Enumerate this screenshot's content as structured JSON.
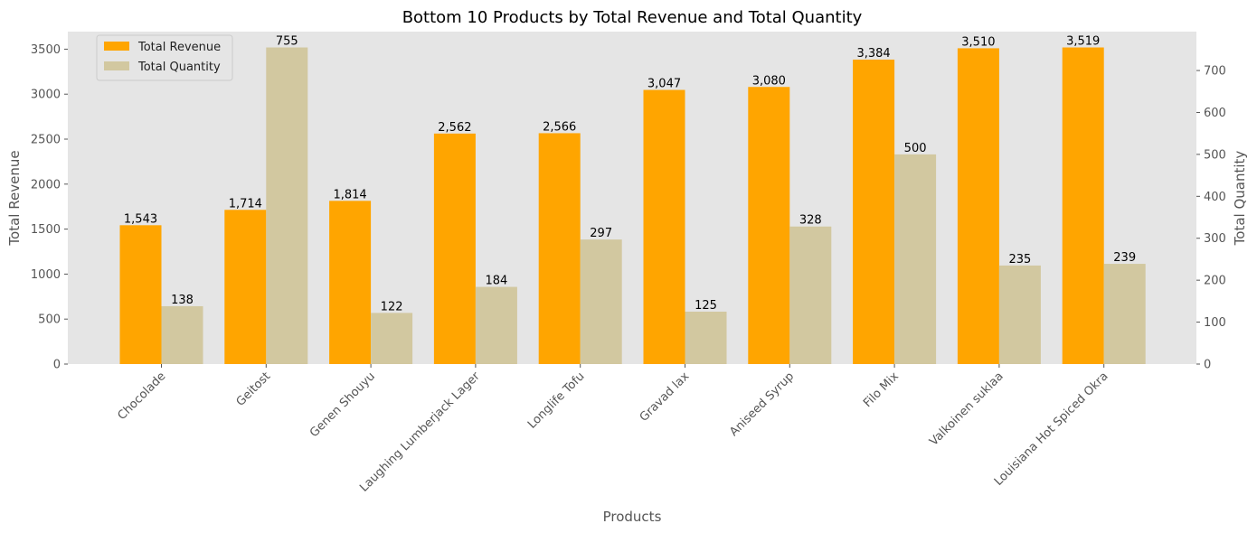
{
  "chart_data": {
    "type": "bar",
    "title": "Bottom 10 Products by Total Revenue and Total Quantity",
    "xlabel": "Products",
    "ylabel": "Total Revenue",
    "y2label": "Total Quantity",
    "categories": [
      "Chocolade",
      "Geitost",
      "Genen Shouyu",
      "Laughing Lumberjack Lager",
      "Longlife Tofu",
      "Gravad lax",
      "Aniseed Syrup",
      "Filo Mix",
      "Valkoinen suklaa",
      "Louisiana Hot Spiced Okra"
    ],
    "series": [
      {
        "name": "Total Revenue",
        "axis": "left",
        "color": "#FFA500",
        "values": [
          1543,
          1714,
          1814,
          2562,
          2566,
          3047,
          3080,
          3384,
          3510,
          3519
        ],
        "labels": [
          "1,543",
          "1,714",
          "1,814",
          "2,562",
          "2,566",
          "3,047",
          "3,080",
          "3,384",
          "3,510",
          "3,519"
        ]
      },
      {
        "name": "Total Quantity",
        "axis": "right",
        "color": "#D2C8A0",
        "values": [
          138,
          755,
          122,
          184,
          297,
          125,
          328,
          500,
          235,
          239
        ],
        "labels": [
          "138",
          "755",
          "122",
          "184",
          "297",
          "125",
          "328",
          "500",
          "235",
          "239"
        ]
      }
    ],
    "ylim": [
      0,
      3695
    ],
    "y2lim": [
      0,
      792.75
    ],
    "yticks": [
      0,
      500,
      1000,
      1500,
      2000,
      2500,
      3000,
      3500
    ],
    "y2ticks": [
      0,
      100,
      200,
      300,
      400,
      500,
      600,
      700
    ],
    "grid": false,
    "legend_position": "top-left",
    "background_color": "#E5E5E5"
  }
}
